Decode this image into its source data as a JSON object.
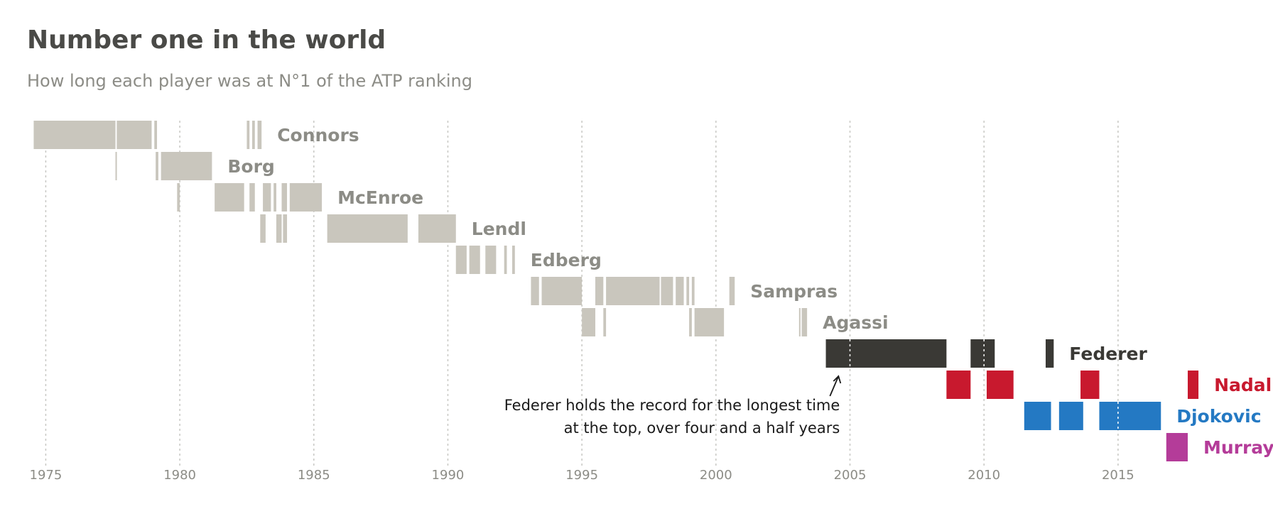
{
  "chart_data": {
    "type": "timeline",
    "title": "Number one in the world",
    "subtitle": "How long each player was at N°1 of the ATP ranking",
    "xlim": [
      1974.3,
      2019.8
    ],
    "x_ticks": [
      1975,
      1980,
      1985,
      1990,
      1995,
      2000,
      2005,
      2010,
      2015
    ],
    "grid": "vertical-dotted",
    "annotation": {
      "lines": [
        "Federer holds the record for the longest time",
        "at the top, over four and a half years"
      ],
      "points_to": {
        "player": "Federer",
        "year": 2004.2
      }
    },
    "players": [
      {
        "name": "Connors",
        "color": "#c9c6bd",
        "label_color": "#8c8c86",
        "periods": [
          [
            1974.55,
            1977.6
          ],
          [
            1977.65,
            1978.95
          ],
          [
            1979.05,
            1979.15
          ],
          [
            1982.5,
            1982.6
          ],
          [
            1982.7,
            1982.8
          ],
          [
            1982.9,
            1983.05
          ]
        ]
      },
      {
        "name": "Borg",
        "color": "#c9c6bd",
        "label_color": "#8c8c86",
        "periods": [
          [
            1977.6,
            1977.65
          ],
          [
            1979.1,
            1979.2
          ],
          [
            1979.3,
            1981.2
          ],
          [
            1980.95,
            1981.1
          ]
        ]
      },
      {
        "name": "McEnroe",
        "color": "#c9c6bd",
        "label_color": "#8c8c86",
        "periods": [
          [
            1979.9,
            1980.0
          ],
          [
            1981.3,
            1982.4
          ],
          [
            1982.6,
            1982.8
          ],
          [
            1983.1,
            1983.4
          ],
          [
            1983.5,
            1983.6
          ],
          [
            1983.8,
            1984.0
          ],
          [
            1984.1,
            1985.3
          ]
        ]
      },
      {
        "name": "Lendl",
        "color": "#c9c6bd",
        "label_color": "#8c8c86",
        "periods": [
          [
            1983.0,
            1983.2
          ],
          [
            1983.6,
            1983.8
          ],
          [
            1983.85,
            1984.0
          ],
          [
            1985.5,
            1988.5
          ],
          [
            1988.9,
            1990.3
          ]
        ]
      },
      {
        "name": "Edberg",
        "color": "#c9c6bd",
        "label_color": "#8c8c86",
        "periods": [
          [
            1990.3,
            1990.7
          ],
          [
            1990.8,
            1991.2
          ],
          [
            1991.4,
            1991.8
          ],
          [
            1992.1,
            1992.2
          ],
          [
            1992.4,
            1992.5
          ]
        ]
      },
      {
        "name": "Sampras",
        "color": "#c9c6bd",
        "label_color": "#8c8c86",
        "periods": [
          [
            1993.1,
            1993.4
          ],
          [
            1993.5,
            1995.0
          ],
          [
            1995.5,
            1995.8
          ],
          [
            1995.9,
            1997.9
          ],
          [
            1997.95,
            1998.4
          ],
          [
            1998.5,
            1998.8
          ],
          [
            1998.9,
            1999.0
          ],
          [
            1999.1,
            1999.2
          ],
          [
            2000.5,
            2000.7
          ]
        ]
      },
      {
        "name": "Agassi",
        "color": "#c9c6bd",
        "label_color": "#8c8c86",
        "periods": [
          [
            1995.0,
            1995.5
          ],
          [
            1995.8,
            1995.9
          ],
          [
            1999.0,
            1999.1
          ],
          [
            1999.2,
            2000.3
          ],
          [
            2003.1,
            2003.15
          ],
          [
            2003.2,
            2003.4
          ]
        ]
      },
      {
        "name": "Federer",
        "color": "#3a3935",
        "label_color": "#3a3935",
        "periods": [
          [
            2004.1,
            2008.6
          ],
          [
            2009.5,
            2010.4
          ],
          [
            2012.3,
            2012.6
          ]
        ]
      },
      {
        "name": "Nadal",
        "color": "#c8192e",
        "label_color": "#c8192e",
        "periods": [
          [
            2008.6,
            2009.5
          ],
          [
            2010.1,
            2011.1
          ],
          [
            2013.6,
            2014.3
          ],
          [
            2017.6,
            2018.0
          ]
        ]
      },
      {
        "name": "Djokovic",
        "color": "#2479c3",
        "label_color": "#2479c3",
        "periods": [
          [
            2011.5,
            2012.5
          ],
          [
            2012.8,
            2013.7
          ],
          [
            2014.3,
            2016.6
          ]
        ]
      },
      {
        "name": "Murray",
        "color": "#b43c99",
        "label_color": "#b43c99",
        "periods": [
          [
            2016.8,
            2017.6
          ]
        ]
      }
    ]
  }
}
